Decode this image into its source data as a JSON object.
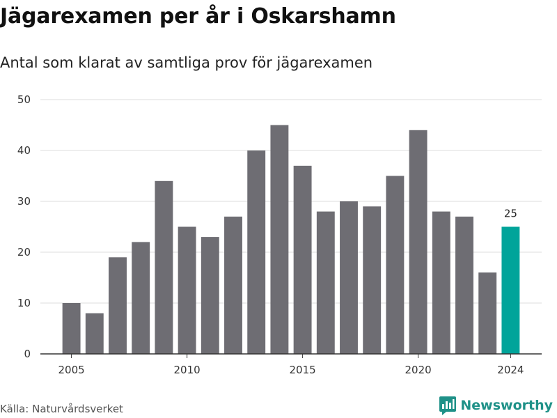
{
  "title": "Jägarexamen per år i Oskarshamn",
  "subtitle": "Antal som klarat av samtliga prov för jägarexamen",
  "source": "Källa: Naturvårdsverket",
  "brand": {
    "name": "Newsworthy",
    "icon": "newsworthy-logo-icon",
    "color": "#1f9188"
  },
  "colors": {
    "bar": "#6e6d73",
    "highlight": "#00a49a",
    "grid": "#dddddd",
    "axis": "#333333"
  },
  "chart_data": {
    "type": "bar",
    "x": [
      2005,
      2006,
      2007,
      2008,
      2009,
      2010,
      2011,
      2012,
      2013,
      2014,
      2015,
      2016,
      2017,
      2018,
      2019,
      2020,
      2021,
      2022,
      2023,
      2024
    ],
    "values": [
      10,
      8,
      19,
      22,
      34,
      25,
      23,
      27,
      40,
      45,
      37,
      28,
      30,
      29,
      35,
      44,
      28,
      27,
      16,
      25
    ],
    "highlight": {
      "x": 2024,
      "value": 25,
      "label": "25"
    },
    "x_ticks": [
      "2005",
      "2010",
      "2015",
      "2020",
      "2024"
    ],
    "y_ticks": [
      "0",
      "10",
      "20",
      "30",
      "40",
      "50"
    ],
    "ylim": [
      0,
      50
    ],
    "grid": true,
    "xlabel": "",
    "ylabel": ""
  }
}
